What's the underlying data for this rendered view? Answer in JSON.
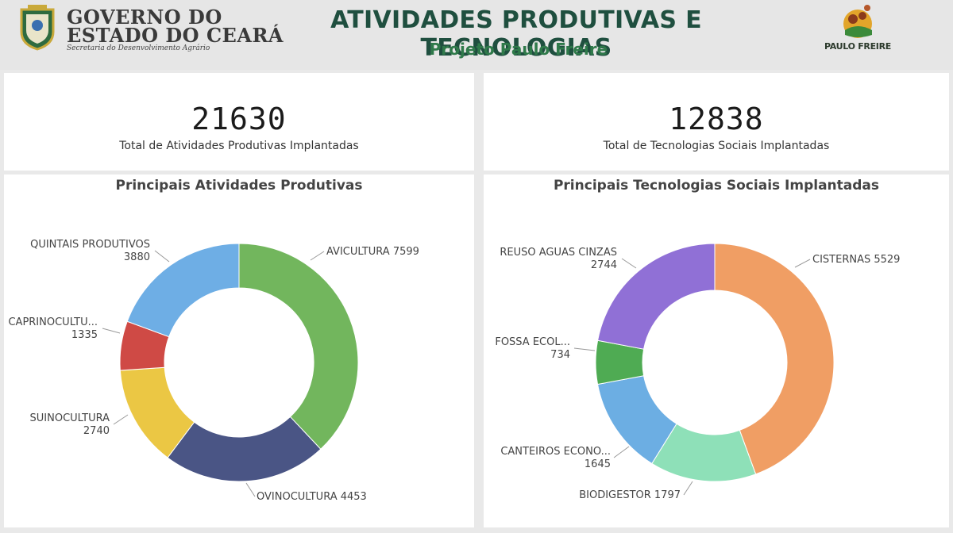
{
  "header": {
    "gov_line1": "GOVERNO DO",
    "gov_line2": "ESTADO DO CEARÁ",
    "gov_sub": "Secretaria do Desenvolvimento Agrário",
    "title": "ATIVIDADES PRODUTIVAS E TECNOLOGIAS",
    "subtitle": "Projeto Paulo Freire",
    "right_logo_text": "PAULO FREIRE",
    "title_color": "#1f4f3f",
    "subtitle_color": "#2f7a4a"
  },
  "kpis": [
    {
      "value": "21630",
      "label": "Total de Atividades Produtivas Implantadas"
    },
    {
      "value": "12838",
      "label": "Total de Tecnologias Sociais Implantadas"
    }
  ],
  "chart_data": [
    {
      "type": "pie",
      "donut": true,
      "title": "Principais Atividades Produtivas",
      "slices": [
        {
          "name": "AVICULTURA",
          "display": "AVICULTURA",
          "value": 7599,
          "color": "#72b65d"
        },
        {
          "name": "OVINOCULTURA",
          "display": "OVINOCULTURA",
          "value": 4453,
          "color": "#4a5585"
        },
        {
          "name": "SUINOCULTURA",
          "display": "SUINOCULTURA",
          "value": 2740,
          "color": "#ebc744"
        },
        {
          "name": "CAPRINOCULTURA",
          "display": "CAPRINOCULTU...",
          "value": 1335,
          "color": "#cf4a45"
        },
        {
          "name": "QUINTAIS PRODUTIVOS",
          "display": "QUINTAIS PRODUTIVOS",
          "value": 3880,
          "color": "#6eaee5"
        }
      ]
    },
    {
      "type": "pie",
      "donut": true,
      "title": "Principais Tecnologias Sociais Implantadas",
      "slices": [
        {
          "name": "CISTERNAS",
          "display": "CISTERNAS",
          "value": 5529,
          "color": "#f09e64"
        },
        {
          "name": "BIODIGESTOR",
          "display": "BIODIGESTOR",
          "value": 1797,
          "color": "#8ee0b8"
        },
        {
          "name": "CANTEIROS ECONOMICOS",
          "display": "CANTEIROS ECONO...",
          "value": 1645,
          "color": "#6caee3"
        },
        {
          "name": "FOSSA ECOLOGICA",
          "display": "FOSSA ECOL...",
          "value": 734,
          "color": "#4fab53"
        },
        {
          "name": "REUSO AGUAS CINZAS",
          "display": "REUSO AGUAS CINZAS",
          "value": 2744,
          "color": "#9070d6"
        }
      ]
    }
  ]
}
